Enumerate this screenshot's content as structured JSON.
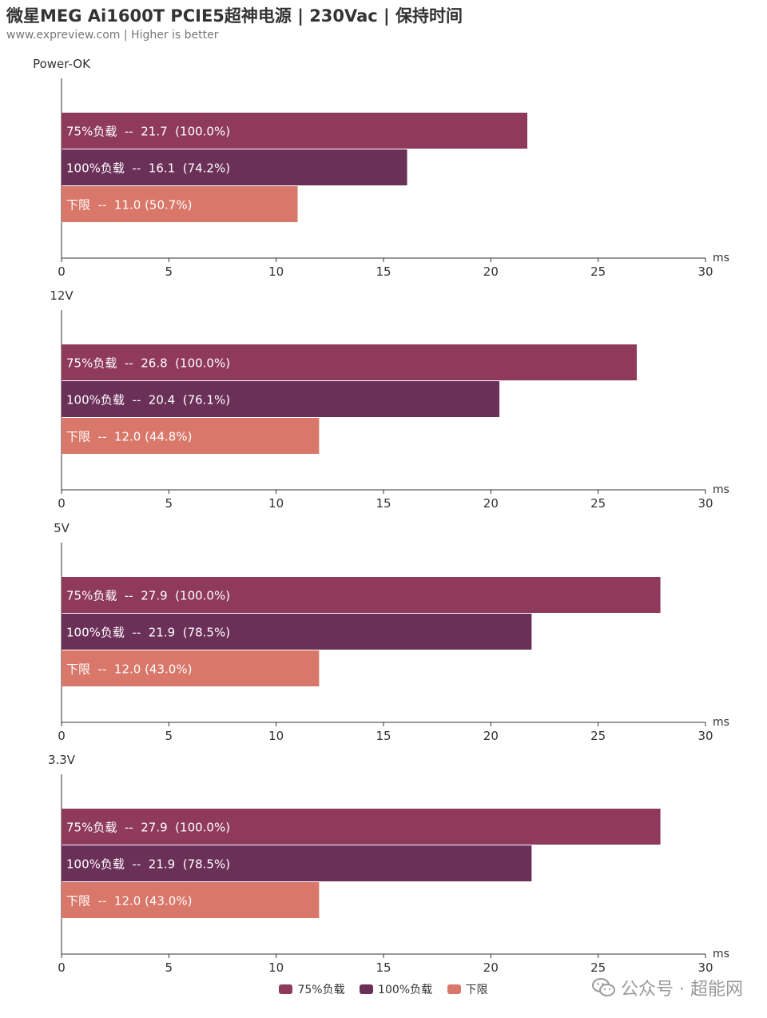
{
  "header": {
    "title": "微星MEG Ai1600T PCIE5超神电源 | 230Vac | 保持时间",
    "subtitle": "www.expreview.com | Higher is better"
  },
  "watermark": {
    "text": "公众号 · 超能网",
    "icon": "wechat-icon"
  },
  "colors": {
    "s75": "#8f3a5a",
    "s100": "#6b3058",
    "limit": "#d9776a"
  },
  "chart_data": [
    {
      "type": "bar",
      "orientation": "horizontal",
      "title": "Power-OK",
      "xlabel": "ms",
      "xlim": [
        0,
        30
      ],
      "xticks": [
        0,
        5,
        10,
        15,
        20,
        25,
        30
      ],
      "series": [
        {
          "name": "75%负载",
          "value": 21.7,
          "label": "75%负载  --  21.7  (100.0%)"
        },
        {
          "name": "100%负载",
          "value": 16.1,
          "label": "100%负载  --  16.1  (74.2%)"
        },
        {
          "name": "下限",
          "value": 11.0,
          "label": "下限  --  11.0 (50.7%)"
        }
      ]
    },
    {
      "type": "bar",
      "orientation": "horizontal",
      "title": "12V",
      "xlabel": "ms",
      "xlim": [
        0,
        30
      ],
      "xticks": [
        0,
        5,
        10,
        15,
        20,
        25,
        30
      ],
      "series": [
        {
          "name": "75%负载",
          "value": 26.8,
          "label": "75%负载  --  26.8  (100.0%)"
        },
        {
          "name": "100%负载",
          "value": 20.4,
          "label": "100%负载  --  20.4  (76.1%)"
        },
        {
          "name": "下限",
          "value": 12.0,
          "label": "下限  --  12.0 (44.8%)"
        }
      ]
    },
    {
      "type": "bar",
      "orientation": "horizontal",
      "title": "5V",
      "xlabel": "ms",
      "xlim": [
        0,
        30
      ],
      "xticks": [
        0,
        5,
        10,
        15,
        20,
        25,
        30
      ],
      "series": [
        {
          "name": "75%负载",
          "value": 27.9,
          "label": "75%负载  --  27.9  (100.0%)"
        },
        {
          "name": "100%负载",
          "value": 21.9,
          "label": "100%负载  --  21.9  (78.5%)"
        },
        {
          "name": "下限",
          "value": 12.0,
          "label": "下限  --  12.0 (43.0%)"
        }
      ]
    },
    {
      "type": "bar",
      "orientation": "horizontal",
      "title": "3.3V",
      "xlabel": "ms",
      "xlim": [
        0,
        30
      ],
      "xticks": [
        0,
        5,
        10,
        15,
        20,
        25,
        30
      ],
      "series": [
        {
          "name": "75%负载",
          "value": 27.9,
          "label": "75%负载  --  27.9  (100.0%)"
        },
        {
          "name": "100%负载",
          "value": 21.9,
          "label": "100%负载  --  21.9  (78.5%)"
        },
        {
          "name": "下限",
          "value": 12.0,
          "label": "下限  --  12.0 (43.0%)"
        }
      ]
    }
  ],
  "legend": [
    {
      "label": "75%负载",
      "color": "#8f3a5a"
    },
    {
      "label": "100%负载",
      "color": "#6b3058"
    },
    {
      "label": "下限",
      "color": "#d9776a"
    }
  ]
}
